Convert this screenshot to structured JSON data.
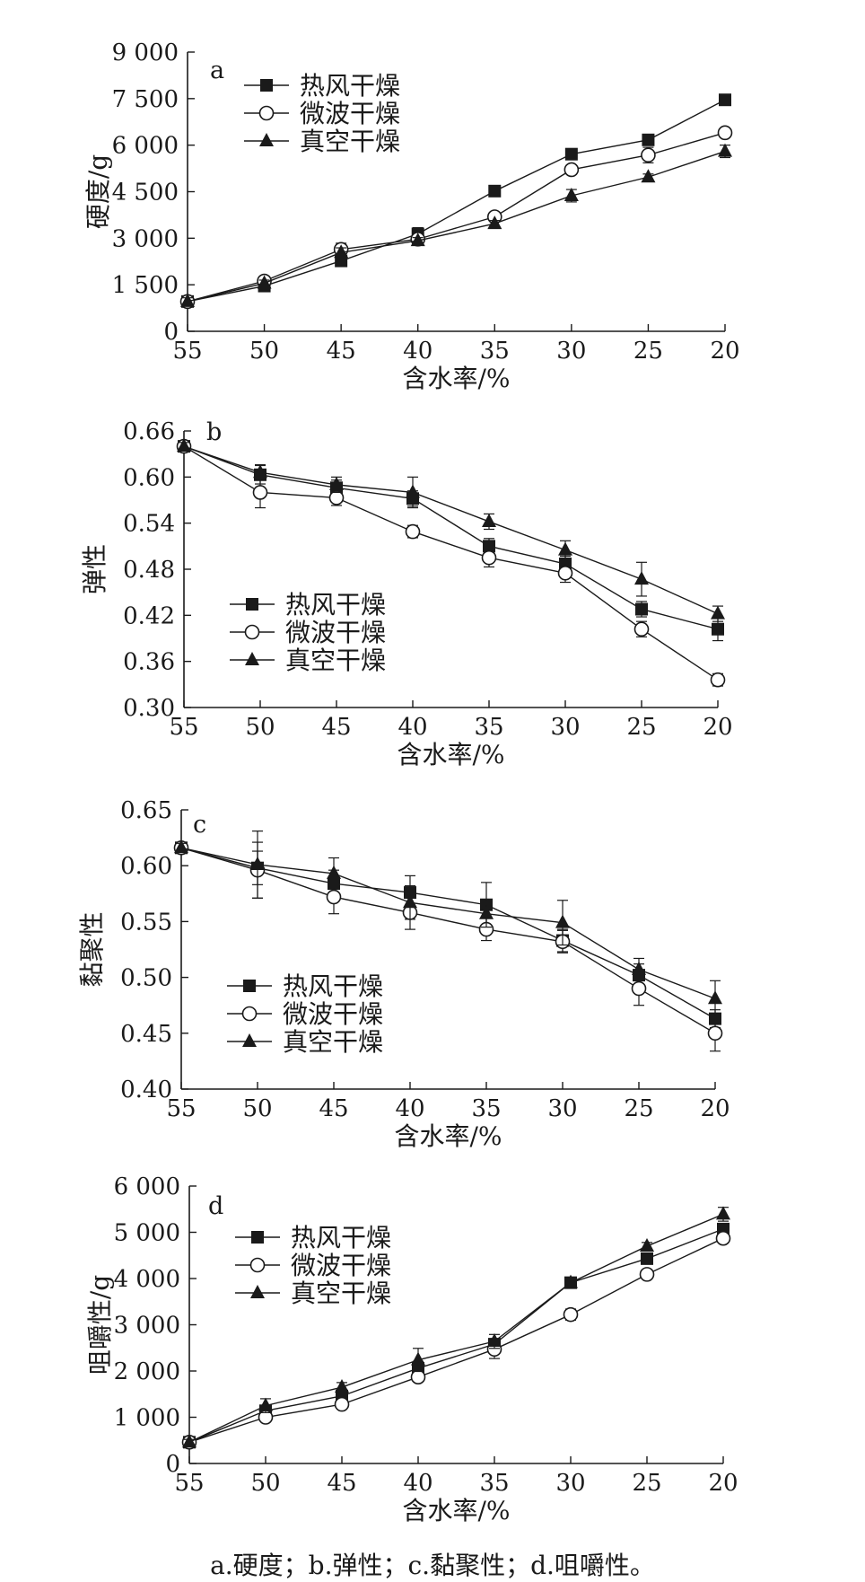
{
  "caption": "a.硬度；b.弹性；c.黏聚性；d.咀嚼性。",
  "chart_data": [
    {
      "type": "line",
      "panel": "a",
      "xlabel": "含水率/%",
      "ylabel": "硬度/g",
      "x": [
        55,
        50,
        45,
        40,
        35,
        30,
        25,
        20
      ],
      "xticks": [
        "55",
        "50",
        "45",
        "40",
        "35",
        "30",
        "25",
        "20"
      ],
      "ylim": [
        0,
        9000
      ],
      "yticks": [
        0,
        1500,
        3000,
        4500,
        6000,
        7500,
        9000
      ],
      "ytick_labels": [
        "0",
        "1 500",
        "3 000",
        "4 500",
        "6 000",
        "7 500",
        "9 000"
      ],
      "legend_position": "top-left",
      "series": [
        {
          "name": "热风干燥",
          "marker": "square-filled",
          "values": [
            960,
            1460,
            2270,
            3140,
            4520,
            5710,
            6170,
            7460
          ],
          "errors": [
            120,
            100,
            130,
            200,
            80,
            100,
            150,
            60
          ]
        },
        {
          "name": "微波干燥",
          "marker": "circle-open",
          "values": [
            960,
            1620,
            2640,
            2970,
            3690,
            5210,
            5680,
            6400
          ],
          "errors": [
            120,
            150,
            200,
            150,
            100,
            150,
            250,
            120
          ]
        },
        {
          "name": "真空干燥",
          "marker": "triangle-filled",
          "values": [
            960,
            1550,
            2540,
            2920,
            3470,
            4370,
            4970,
            5800
          ],
          "errors": [
            120,
            100,
            150,
            100,
            100,
            200,
            100,
            200
          ]
        }
      ]
    },
    {
      "type": "line",
      "panel": "b",
      "xlabel": "含水率/%",
      "ylabel": "弹性",
      "x": [
        55,
        50,
        45,
        40,
        35,
        30,
        25,
        20
      ],
      "xticks": [
        "55",
        "50",
        "45",
        "40",
        "35",
        "30",
        "25",
        "20"
      ],
      "ylim": [
        0.3,
        0.66
      ],
      "yticks": [
        0.3,
        0.36,
        0.42,
        0.48,
        0.54,
        0.6,
        0.66
      ],
      "ytick_labels": [
        "0.30",
        "0.36",
        "0.42",
        "0.48",
        "0.54",
        "0.60",
        "0.66"
      ],
      "legend_position": "bottom-left",
      "series": [
        {
          "name": "热风干燥",
          "marker": "square-filled",
          "values": [
            0.64,
            0.603,
            0.586,
            0.572,
            0.51,
            0.487,
            0.428,
            0.402
          ],
          "errors": [
            0.005,
            0.012,
            0.01,
            0.01,
            0.01,
            0.01,
            0.01,
            0.015
          ]
        },
        {
          "name": "微波干燥",
          "marker": "circle-open",
          "values": [
            0.64,
            0.58,
            0.573,
            0.529,
            0.495,
            0.475,
            0.402,
            0.336
          ],
          "errors": [
            0.005,
            0.02,
            0.01,
            0.008,
            0.012,
            0.012,
            0.01,
            0.008
          ]
        },
        {
          "name": "真空干燥",
          "marker": "triangle-filled",
          "values": [
            0.64,
            0.606,
            0.59,
            0.58,
            0.542,
            0.505,
            0.467,
            0.422
          ],
          "errors": [
            0.005,
            0.01,
            0.01,
            0.02,
            0.01,
            0.012,
            0.022,
            0.01
          ]
        }
      ]
    },
    {
      "type": "line",
      "panel": "c",
      "xlabel": "含水率/%",
      "ylabel": "黏聚性",
      "x": [
        55,
        50,
        45,
        40,
        35,
        30,
        25,
        20
      ],
      "xticks": [
        "55",
        "50",
        "45",
        "40",
        "35",
        "30",
        "25",
        "20"
      ],
      "ylim": [
        0.4,
        0.65
      ],
      "yticks": [
        0.4,
        0.45,
        0.5,
        0.55,
        0.6,
        0.65
      ],
      "ytick_labels": [
        "0.40",
        "0.45",
        "0.50",
        "0.55",
        "0.60",
        "0.65"
      ],
      "legend_position": "bottom-left",
      "series": [
        {
          "name": "热风干燥",
          "marker": "square-filled",
          "values": [
            0.616,
            0.598,
            0.584,
            0.576,
            0.565,
            0.533,
            0.502,
            0.463
          ],
          "errors": [
            0.004,
            0.015,
            0.012,
            0.015,
            0.02,
            0.01,
            0.01,
            0.008
          ]
        },
        {
          "name": "微波干燥",
          "marker": "circle-open",
          "values": [
            0.616,
            0.596,
            0.572,
            0.558,
            0.543,
            0.532,
            0.49,
            0.45
          ],
          "errors": [
            0.004,
            0.025,
            0.015,
            0.015,
            0.01,
            0.01,
            0.015,
            0.016
          ]
        },
        {
          "name": "真空干燥",
          "marker": "triangle-filled",
          "values": [
            0.616,
            0.601,
            0.593,
            0.567,
            0.557,
            0.549,
            0.507,
            0.481
          ],
          "errors": [
            0.004,
            0.03,
            0.014,
            0.015,
            0.012,
            0.02,
            0.01,
            0.016
          ]
        }
      ]
    },
    {
      "type": "line",
      "panel": "d",
      "xlabel": "含水率/%",
      "ylabel": "咀嚼性/g",
      "x": [
        55,
        50,
        45,
        40,
        35,
        30,
        25,
        20
      ],
      "xticks": [
        "55",
        "50",
        "45",
        "40",
        "35",
        "30",
        "25",
        "20"
      ],
      "ylim": [
        0,
        6000
      ],
      "yticks": [
        0,
        1000,
        2000,
        3000,
        4000,
        5000,
        6000
      ],
      "ytick_labels": [
        "0",
        "1 000",
        "2 000",
        "3 000",
        "4 000",
        "5 000",
        "6 000"
      ],
      "legend_position": "top-left",
      "series": [
        {
          "name": "热风干燥",
          "marker": "square-filled",
          "values": [
            460,
            1140,
            1460,
            2060,
            2580,
            3910,
            4430,
            5070
          ],
          "errors": [
            60,
            100,
            100,
            150,
            120,
            80,
            100,
            100
          ]
        },
        {
          "name": "微波干燥",
          "marker": "circle-open",
          "values": [
            460,
            1000,
            1280,
            1870,
            2470,
            3220,
            4090,
            4870
          ],
          "errors": [
            60,
            80,
            80,
            100,
            200,
            120,
            100,
            100
          ]
        },
        {
          "name": "真空干燥",
          "marker": "triangle-filled",
          "values": [
            460,
            1250,
            1650,
            2240,
            2640,
            3910,
            4700,
            5390
          ],
          "errors": [
            60,
            150,
            100,
            250,
            150,
            80,
            80,
            150
          ]
        }
      ]
    }
  ]
}
